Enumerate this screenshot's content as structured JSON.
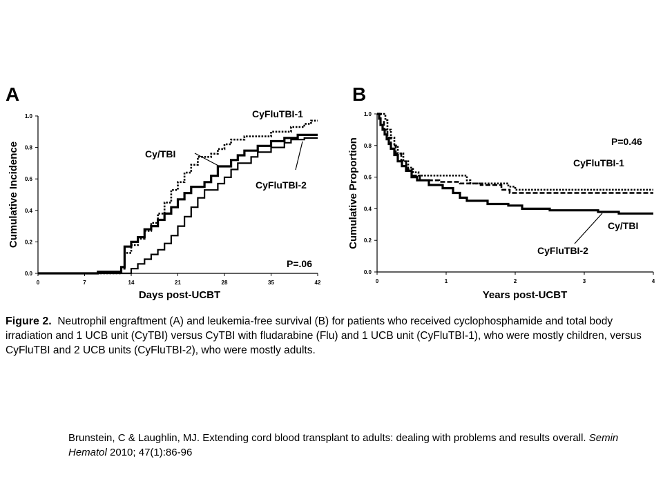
{
  "chart_data": [
    {
      "type": "line",
      "panel": "A",
      "xlabel": "Days post-UCBT",
      "ylabel": "Cumulative Incidence",
      "xlim": [
        0,
        42
      ],
      "ylim": [
        0,
        1.0
      ],
      "xticks": [
        0,
        7,
        14,
        21,
        28,
        35,
        42
      ],
      "yticks": [
        0.0,
        0.2,
        0.4,
        0.6,
        0.8,
        1.0
      ],
      "xtick_labels": [
        "0",
        "7",
        "14",
        "21",
        "28",
        "35",
        "42"
      ],
      "ytick_labels": [
        "0.0",
        "0.2",
        "0.4",
        "0.6",
        "0.8",
        "1.0"
      ],
      "annotation": "P=.06",
      "grid": false,
      "series": [
        {
          "name": "Cy/TBI",
          "color": "#000000",
          "style": "solid-thick",
          "points": [
            [
              0,
              0
            ],
            [
              9,
              0
            ],
            [
              9,
              0.01
            ],
            [
              12.5,
              0.01
            ],
            [
              12.5,
              0.04
            ],
            [
              13,
              0.04
            ],
            [
              13,
              0.17
            ],
            [
              14,
              0.17
            ],
            [
              14,
              0.2
            ],
            [
              15,
              0.2
            ],
            [
              15,
              0.23
            ],
            [
              16,
              0.23
            ],
            [
              16,
              0.28
            ],
            [
              17,
              0.28
            ],
            [
              17,
              0.3
            ],
            [
              18,
              0.3
            ],
            [
              18,
              0.34
            ],
            [
              19,
              0.34
            ],
            [
              19,
              0.38
            ],
            [
              20,
              0.38
            ],
            [
              20,
              0.42
            ],
            [
              21,
              0.42
            ],
            [
              21,
              0.47
            ],
            [
              22,
              0.47
            ],
            [
              22,
              0.51
            ],
            [
              23,
              0.51
            ],
            [
              23,
              0.55
            ],
            [
              25,
              0.55
            ],
            [
              25,
              0.58
            ],
            [
              26,
              0.58
            ],
            [
              26,
              0.62
            ],
            [
              27,
              0.62
            ],
            [
              27,
              0.68
            ],
            [
              29,
              0.68
            ],
            [
              29,
              0.72
            ],
            [
              30,
              0.72
            ],
            [
              30,
              0.75
            ],
            [
              31,
              0.75
            ],
            [
              31,
              0.78
            ],
            [
              33,
              0.78
            ],
            [
              33,
              0.81
            ],
            [
              35,
              0.81
            ],
            [
              35,
              0.84
            ],
            [
              37,
              0.84
            ],
            [
              37,
              0.86
            ],
            [
              39,
              0.86
            ],
            [
              39,
              0.88
            ],
            [
              42,
              0.88
            ]
          ]
        },
        {
          "name": "CyFluTBI-1",
          "color": "#000000",
          "style": "dotted",
          "points": [
            [
              0,
              0
            ],
            [
              12.5,
              0
            ],
            [
              12.5,
              0.03
            ],
            [
              13,
              0.03
            ],
            [
              13,
              0.13
            ],
            [
              14,
              0.13
            ],
            [
              14,
              0.18
            ],
            [
              15,
              0.18
            ],
            [
              15,
              0.22
            ],
            [
              16,
              0.22
            ],
            [
              16,
              0.27
            ],
            [
              17,
              0.27
            ],
            [
              17,
              0.32
            ],
            [
              18,
              0.32
            ],
            [
              18,
              0.38
            ],
            [
              19,
              0.38
            ],
            [
              19,
              0.45
            ],
            [
              20,
              0.45
            ],
            [
              20,
              0.53
            ],
            [
              21,
              0.53
            ],
            [
              21,
              0.58
            ],
            [
              22,
              0.58
            ],
            [
              22,
              0.64
            ],
            [
              23,
              0.64
            ],
            [
              23,
              0.69
            ],
            [
              24,
              0.69
            ],
            [
              24,
              0.74
            ],
            [
              26,
              0.74
            ],
            [
              26,
              0.76
            ],
            [
              27,
              0.76
            ],
            [
              27,
              0.79
            ],
            [
              28,
              0.79
            ],
            [
              28,
              0.82
            ],
            [
              29,
              0.82
            ],
            [
              29,
              0.85
            ],
            [
              31,
              0.85
            ],
            [
              31,
              0.87
            ],
            [
              35,
              0.87
            ],
            [
              35,
              0.9
            ],
            [
              38,
              0.9
            ],
            [
              38,
              0.93
            ],
            [
              40,
              0.93
            ],
            [
              40,
              0.95
            ],
            [
              41,
              0.95
            ],
            [
              41,
              0.97
            ],
            [
              42,
              0.97
            ]
          ]
        },
        {
          "name": "CyFluTBI-2",
          "color": "#000000",
          "style": "solid-thin",
          "points": [
            [
              0,
              0
            ],
            [
              14,
              0
            ],
            [
              14,
              0.03
            ],
            [
              15,
              0.03
            ],
            [
              15,
              0.06
            ],
            [
              16,
              0.06
            ],
            [
              16,
              0.09
            ],
            [
              17,
              0.09
            ],
            [
              17,
              0.12
            ],
            [
              18,
              0.12
            ],
            [
              18,
              0.15
            ],
            [
              19,
              0.15
            ],
            [
              19,
              0.19
            ],
            [
              20,
              0.19
            ],
            [
              20,
              0.24
            ],
            [
              21,
              0.24
            ],
            [
              21,
              0.3
            ],
            [
              22,
              0.3
            ],
            [
              22,
              0.36
            ],
            [
              23,
              0.36
            ],
            [
              23,
              0.42
            ],
            [
              24,
              0.42
            ],
            [
              24,
              0.48
            ],
            [
              25,
              0.48
            ],
            [
              25,
              0.53
            ],
            [
              27,
              0.53
            ],
            [
              27,
              0.57
            ],
            [
              28,
              0.57
            ],
            [
              28,
              0.61
            ],
            [
              29,
              0.61
            ],
            [
              29,
              0.66
            ],
            [
              30,
              0.66
            ],
            [
              30,
              0.7
            ],
            [
              32,
              0.7
            ],
            [
              32,
              0.74
            ],
            [
              33,
              0.74
            ],
            [
              33,
              0.77
            ],
            [
              35,
              0.77
            ],
            [
              35,
              0.8
            ],
            [
              37,
              0.8
            ],
            [
              37,
              0.83
            ],
            [
              38,
              0.83
            ],
            [
              38,
              0.85
            ],
            [
              40,
              0.85
            ],
            [
              40,
              0.86
            ],
            [
              42,
              0.86
            ]
          ]
        }
      ]
    },
    {
      "type": "line",
      "panel": "B",
      "xlabel": "Years post-UCBT",
      "ylabel": "Cumulative Proportion",
      "xlim": [
        0,
        4
      ],
      "ylim": [
        0,
        1.0
      ],
      "xticks": [
        0,
        1,
        2,
        3,
        4
      ],
      "yticks": [
        0.0,
        0.2,
        0.4,
        0.6,
        0.8,
        1.0
      ],
      "xtick_labels": [
        "0",
        "1",
        "2",
        "3",
        "4"
      ],
      "ytick_labels": [
        "0.0",
        "0.2",
        "0.4",
        "0.6",
        "0.8",
        "1.0"
      ],
      "annotation": "P=0.46",
      "grid": false,
      "series": [
        {
          "name": "Cy/TBI",
          "color": "#000000",
          "style": "solid-thick",
          "points": [
            [
              0,
              1.0
            ],
            [
              0.03,
              1.0
            ],
            [
              0.03,
              0.97
            ],
            [
              0.05,
              0.97
            ],
            [
              0.05,
              0.93
            ],
            [
              0.08,
              0.93
            ],
            [
              0.08,
              0.9
            ],
            [
              0.11,
              0.9
            ],
            [
              0.11,
              0.87
            ],
            [
              0.14,
              0.87
            ],
            [
              0.14,
              0.84
            ],
            [
              0.17,
              0.84
            ],
            [
              0.17,
              0.81
            ],
            [
              0.2,
              0.81
            ],
            [
              0.2,
              0.78
            ],
            [
              0.25,
              0.78
            ],
            [
              0.25,
              0.74
            ],
            [
              0.3,
              0.74
            ],
            [
              0.3,
              0.7
            ],
            [
              0.36,
              0.7
            ],
            [
              0.36,
              0.67
            ],
            [
              0.42,
              0.67
            ],
            [
              0.42,
              0.64
            ],
            [
              0.5,
              0.64
            ],
            [
              0.5,
              0.6
            ],
            [
              0.58,
              0.6
            ],
            [
              0.58,
              0.58
            ],
            [
              0.75,
              0.58
            ],
            [
              0.75,
              0.55
            ],
            [
              0.95,
              0.55
            ],
            [
              0.95,
              0.53
            ],
            [
              1.1,
              0.53
            ],
            [
              1.1,
              0.5
            ],
            [
              1.2,
              0.5
            ],
            [
              1.2,
              0.47
            ],
            [
              1.3,
              0.47
            ],
            [
              1.3,
              0.45
            ],
            [
              1.6,
              0.45
            ],
            [
              1.6,
              0.43
            ],
            [
              1.9,
              0.43
            ],
            [
              1.9,
              0.42
            ],
            [
              2.1,
              0.42
            ],
            [
              2.1,
              0.4
            ],
            [
              2.5,
              0.4
            ],
            [
              2.5,
              0.39
            ],
            [
              3.2,
              0.39
            ],
            [
              3.2,
              0.38
            ],
            [
              3.5,
              0.38
            ],
            [
              3.5,
              0.37
            ],
            [
              4.0,
              0.37
            ]
          ]
        },
        {
          "name": "CyFluTBI-1",
          "color": "#000000",
          "style": "dotted",
          "points": [
            [
              0,
              1.0
            ],
            [
              0.12,
              1.0
            ],
            [
              0.12,
              0.96
            ],
            [
              0.15,
              0.96
            ],
            [
              0.15,
              0.9
            ],
            [
              0.2,
              0.9
            ],
            [
              0.2,
              0.85
            ],
            [
              0.25,
              0.85
            ],
            [
              0.25,
              0.8
            ],
            [
              0.3,
              0.8
            ],
            [
              0.3,
              0.75
            ],
            [
              0.38,
              0.75
            ],
            [
              0.38,
              0.7
            ],
            [
              0.45,
              0.7
            ],
            [
              0.45,
              0.66
            ],
            [
              0.52,
              0.66
            ],
            [
              0.52,
              0.63
            ],
            [
              0.6,
              0.63
            ],
            [
              0.6,
              0.61
            ],
            [
              1.3,
              0.61
            ],
            [
              1.3,
              0.58
            ],
            [
              1.35,
              0.58
            ],
            [
              1.35,
              0.56
            ],
            [
              1.9,
              0.56
            ],
            [
              1.9,
              0.54
            ],
            [
              2.0,
              0.54
            ],
            [
              2.0,
              0.52
            ],
            [
              4.0,
              0.52
            ]
          ]
        },
        {
          "name": "CyFluTBI-2",
          "color": "#000000",
          "style": "dashed",
          "points": [
            [
              0,
              1.0
            ],
            [
              0.05,
              1.0
            ],
            [
              0.05,
              0.95
            ],
            [
              0.1,
              0.95
            ],
            [
              0.1,
              0.9
            ],
            [
              0.15,
              0.9
            ],
            [
              0.15,
              0.85
            ],
            [
              0.2,
              0.85
            ],
            [
              0.2,
              0.8
            ],
            [
              0.27,
              0.8
            ],
            [
              0.27,
              0.75
            ],
            [
              0.35,
              0.75
            ],
            [
              0.35,
              0.7
            ],
            [
              0.42,
              0.7
            ],
            [
              0.42,
              0.65
            ],
            [
              0.5,
              0.65
            ],
            [
              0.5,
              0.61
            ],
            [
              0.62,
              0.61
            ],
            [
              0.62,
              0.58
            ],
            [
              0.9,
              0.58
            ],
            [
              0.9,
              0.57
            ],
            [
              1.2,
              0.57
            ],
            [
              1.2,
              0.56
            ],
            [
              1.5,
              0.56
            ],
            [
              1.5,
              0.55
            ],
            [
              1.8,
              0.55
            ],
            [
              1.8,
              0.52
            ],
            [
              1.92,
              0.52
            ],
            [
              1.92,
              0.5
            ],
            [
              4.0,
              0.5
            ]
          ]
        }
      ]
    }
  ],
  "caption": {
    "figure_label": "Figure 2.",
    "text": "Neutrophil engraftment (A) and leukemia-free survival (B) for patients who received cyclophosphamide and total body irradiation and 1 UCB unit (CyTBI) versus CyTBI with fludarabine (Flu) and 1 UCB unit (CyFluTBI-1), who were mostly children, versus CyFluTBI and 2 UCB units (CyFluTBI-2), who were mostly adults."
  },
  "citation": {
    "before": "Brunstein, C & Laughlin, MJ. Extending cord blood transplant to adults: dealing with problems and results overall.  ",
    "journal": "Semin Hematol",
    "after": " 2010; 47(1):86-96"
  }
}
